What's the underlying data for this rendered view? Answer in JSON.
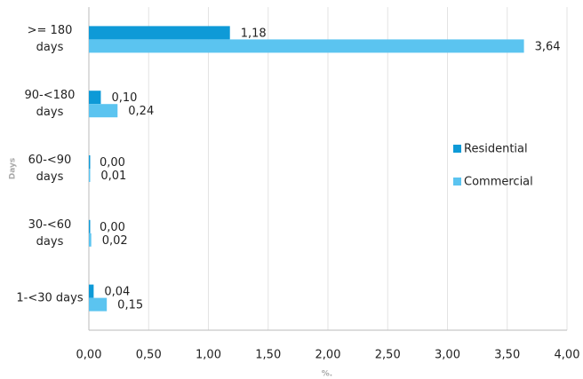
{
  "chart_data": {
    "type": "hbar",
    "categories": [
      ">= 180 days",
      "90-<180 days",
      "60-<90 days",
      "30-<60 days",
      "1-<30 days"
    ],
    "series": [
      {
        "name": "Residential",
        "color": "#0e9ad7",
        "values": [
          1.18,
          0.1,
          0.0,
          0.0,
          0.04
        ],
        "value_labels": [
          "1,18",
          "0,10",
          "0,00",
          "0,00",
          "0,04"
        ]
      },
      {
        "name": "Commercial",
        "color": "#5bc4f0",
        "values": [
          3.64,
          0.24,
          0.01,
          0.02,
          0.15
        ],
        "value_labels": [
          "3,64",
          "0,24",
          "0,01",
          "0,02",
          "0,15"
        ]
      }
    ],
    "xlabel": "%.",
    "ylabel": "Days",
    "xlim": [
      0,
      4
    ],
    "xticks": [
      {
        "value": 0,
        "label": "0,00"
      },
      {
        "value": 0.5,
        "label": "0,50"
      },
      {
        "value": 1,
        "label": "1,00"
      },
      {
        "value": 1.5,
        "label": "1,50"
      },
      {
        "value": 2,
        "label": "2,00"
      },
      {
        "value": 2.5,
        "label": "2,50"
      },
      {
        "value": 3,
        "label": "3,00"
      },
      {
        "value": 3.5,
        "label": "3,50"
      },
      {
        "value": 4,
        "label": "4,00"
      }
    ],
    "grid": true
  }
}
